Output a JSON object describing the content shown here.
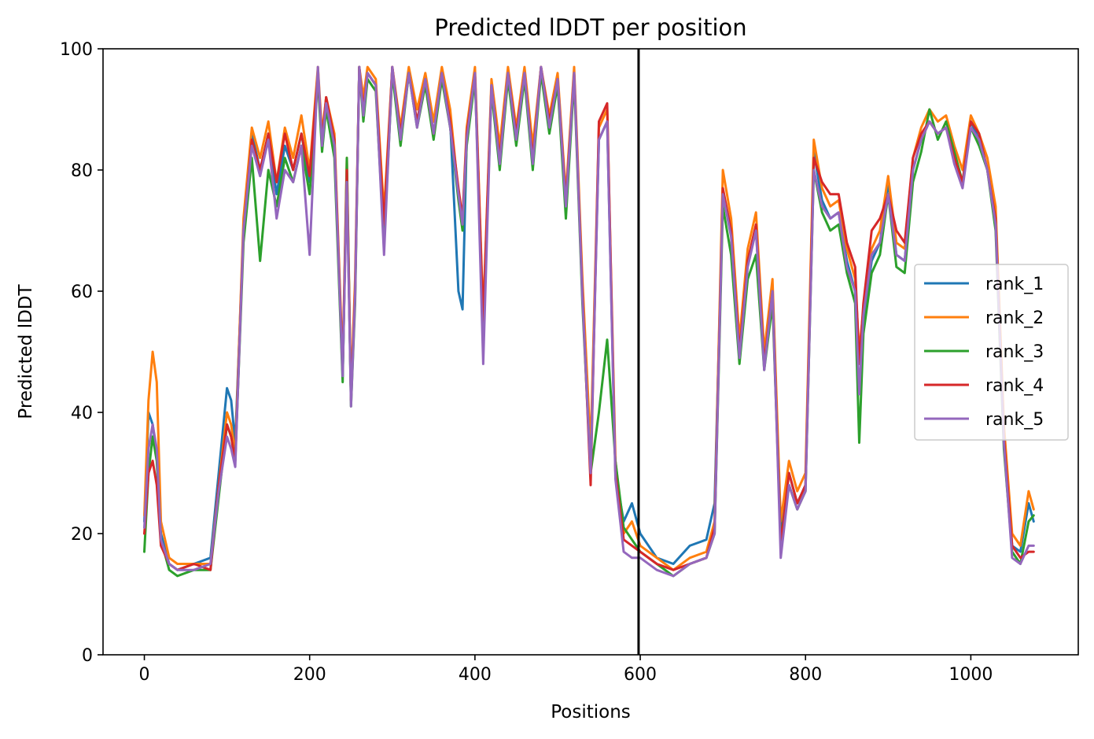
{
  "chart_data": {
    "type": "line",
    "title": "Predicted lDDT per position",
    "xlabel": "Positions",
    "ylabel": "Predicted lDDT",
    "xlim": [
      -50,
      1130
    ],
    "ylim": [
      0,
      100
    ],
    "xticks": [
      0,
      200,
      400,
      600,
      800,
      1000
    ],
    "yticks": [
      0,
      20,
      40,
      60,
      80,
      100
    ],
    "grid": false,
    "legend_position": "center-right",
    "vertical_line_x": 598,
    "vertical_line_color": "#000000",
    "x": [
      0,
      5,
      10,
      15,
      20,
      30,
      40,
      60,
      80,
      90,
      100,
      105,
      110,
      120,
      130,
      140,
      150,
      160,
      170,
      180,
      190,
      200,
      210,
      215,
      220,
      230,
      240,
      245,
      250,
      255,
      260,
      265,
      270,
      280,
      290,
      300,
      310,
      320,
      330,
      340,
      350,
      360,
      370,
      380,
      385,
      390,
      400,
      410,
      420,
      430,
      440,
      450,
      460,
      470,
      480,
      490,
      500,
      510,
      520,
      530,
      540,
      550,
      560,
      570,
      580,
      590,
      600,
      620,
      640,
      660,
      680,
      690,
      700,
      710,
      720,
      730,
      740,
      750,
      760,
      770,
      780,
      790,
      800,
      810,
      820,
      830,
      840,
      850,
      860,
      865,
      870,
      880,
      890,
      900,
      910,
      920,
      930,
      940,
      950,
      960,
      970,
      980,
      990,
      1000,
      1010,
      1020,
      1030,
      1040,
      1050,
      1060,
      1070,
      1076
    ],
    "series": [
      {
        "name": "rank_1",
        "color": "#1f77b4",
        "values": [
          22,
          40,
          38,
          33,
          20,
          15,
          14,
          15,
          16,
          30,
          44,
          42,
          35,
          70,
          86,
          80,
          86,
          76,
          84,
          80,
          86,
          78,
          96,
          85,
          92,
          85,
          46,
          80,
          42,
          60,
          97,
          90,
          96,
          94,
          70,
          97,
          85,
          96,
          88,
          95,
          86,
          96,
          88,
          60,
          57,
          85,
          96,
          55,
          94,
          82,
          96,
          85,
          96,
          82,
          97,
          87,
          95,
          74,
          96,
          60,
          32,
          85,
          88,
          30,
          22,
          25,
          20,
          16,
          15,
          18,
          19,
          25,
          76,
          70,
          50,
          65,
          70,
          48,
          60,
          20,
          30,
          25,
          28,
          83,
          75,
          72,
          73,
          65,
          60,
          48,
          55,
          65,
          68,
          78,
          66,
          65,
          80,
          85,
          88,
          86,
          87,
          82,
          78,
          88,
          85,
          80,
          72,
          36,
          18,
          17,
          25,
          22
        ]
      },
      {
        "name": "rank_2",
        "color": "#ff7f0e",
        "values": [
          23,
          42,
          50,
          45,
          22,
          16,
          15,
          15,
          15,
          28,
          40,
          38,
          33,
          72,
          87,
          82,
          88,
          78,
          87,
          82,
          89,
          80,
          97,
          86,
          92,
          86,
          48,
          82,
          43,
          62,
          97,
          92,
          97,
          95,
          73,
          97,
          87,
          97,
          90,
          96,
          88,
          97,
          90,
          76,
          72,
          87,
          97,
          56,
          95,
          84,
          97,
          87,
          97,
          84,
          97,
          89,
          96,
          76,
          97,
          62,
          34,
          87,
          90,
          32,
          20,
          22,
          18,
          16,
          14,
          16,
          17,
          22,
          80,
          72,
          52,
          67,
          73,
          50,
          62,
          22,
          32,
          27,
          30,
          85,
          77,
          74,
          75,
          67,
          62,
          50,
          57,
          67,
          70,
          79,
          68,
          67,
          82,
          87,
          90,
          88,
          89,
          84,
          80,
          89,
          86,
          82,
          74,
          38,
          20,
          18,
          27,
          24
        ]
      },
      {
        "name": "rank_3",
        "color": "#2ca02c",
        "values": [
          17,
          30,
          36,
          32,
          19,
          14,
          13,
          14,
          14,
          26,
          38,
          36,
          32,
          68,
          82,
          65,
          80,
          74,
          82,
          78,
          84,
          76,
          95,
          83,
          90,
          82,
          45,
          82,
          41,
          58,
          97,
          88,
          95,
          93,
          68,
          96,
          84,
          96,
          87,
          94,
          85,
          95,
          87,
          75,
          70,
          84,
          95,
          54,
          93,
          80,
          95,
          84,
          95,
          80,
          96,
          86,
          94,
          72,
          95,
          58,
          30,
          40,
          52,
          32,
          21,
          19,
          17,
          15,
          13,
          15,
          16,
          20,
          74,
          66,
          48,
          62,
          66,
          47,
          58,
          19,
          28,
          24,
          27,
          80,
          73,
          70,
          71,
          63,
          58,
          35,
          53,
          63,
          66,
          76,
          64,
          63,
          78,
          83,
          90,
          85,
          88,
          83,
          78,
          87,
          84,
          80,
          70,
          34,
          17,
          15,
          22,
          23
        ]
      },
      {
        "name": "rank_4",
        "color": "#d62728",
        "values": [
          20,
          30,
          32,
          28,
          18,
          15,
          14,
          15,
          14,
          28,
          38,
          36,
          32,
          70,
          85,
          80,
          86,
          78,
          86,
          80,
          86,
          79,
          96,
          85,
          92,
          85,
          47,
          80,
          42,
          60,
          97,
          90,
          96,
          94,
          71,
          97,
          86,
          96,
          88,
          95,
          86,
          96,
          88,
          77,
          72,
          86,
          96,
          55,
          94,
          82,
          96,
          86,
          96,
          82,
          97,
          88,
          95,
          75,
          96,
          60,
          28,
          88,
          91,
          30,
          19,
          18,
          17,
          15,
          14,
          15,
          16,
          21,
          77,
          70,
          50,
          65,
          71,
          48,
          60,
          18,
          30,
          25,
          28,
          82,
          78,
          76,
          76,
          68,
          64,
          48,
          58,
          70,
          72,
          76,
          70,
          68,
          82,
          86,
          88,
          86,
          87,
          82,
          78,
          88,
          86,
          80,
          72,
          36,
          18,
          16,
          17,
          17
        ]
      },
      {
        "name": "rank_5",
        "color": "#9467bd",
        "values": [
          21,
          34,
          38,
          34,
          19,
          15,
          14,
          14,
          15,
          27,
          36,
          34,
          31,
          70,
          84,
          79,
          85,
          72,
          80,
          78,
          84,
          66,
          97,
          84,
          91,
          84,
          46,
          78,
          41,
          59,
          97,
          89,
          96,
          94,
          66,
          97,
          85,
          96,
          87,
          95,
          86,
          96,
          87,
          76,
          71,
          85,
          96,
          48,
          94,
          81,
          96,
          85,
          96,
          81,
          97,
          87,
          95,
          74,
          96,
          59,
          30,
          85,
          88,
          29,
          17,
          16,
          16,
          14,
          13,
          15,
          16,
          20,
          76,
          69,
          49,
          64,
          70,
          47,
          60,
          16,
          28,
          24,
          27,
          80,
          74,
          72,
          73,
          64,
          60,
          43,
          56,
          66,
          68,
          76,
          66,
          65,
          80,
          85,
          88,
          86,
          87,
          81,
          77,
          87,
          85,
          80,
          71,
          35,
          16,
          15,
          18,
          18
        ]
      }
    ]
  }
}
